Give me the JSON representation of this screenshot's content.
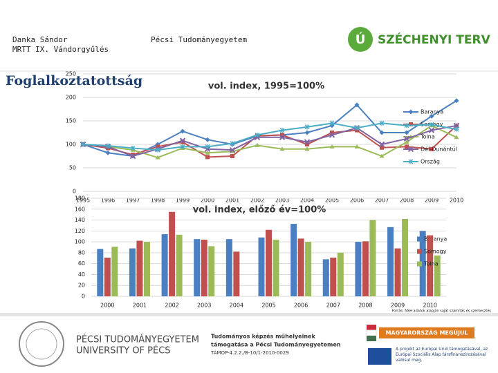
{
  "header": {
    "author": "Danka Sándor",
    "event": "MRTT IX. Vándorgyűlés",
    "university": "Pécsi Tudományegyetem",
    "logo": "SZÉCHENYI TERV",
    "logo_letter": "Ú",
    "heading": "Foglalkoztatottság"
  },
  "footer": {
    "source": "Forrás: NSH adatok alapján saját számítás és szerkesztés",
    "uni_hu": "PÉCSI TUDOMÁNYEGYETEM",
    "uni_en": "UNIVERSITY OF PÉCS",
    "project_1": "Tudományos képzés műhelyeinek",
    "project_2": "támogatása a Pécsi Tudományegyetemen",
    "project_code": "TÁMOP-4.2.2./B-10/1-2010-0029",
    "banner": "MAGYARORSZÁG MEGÚJUL",
    "eu_note": "A projekt az Európai Unió támogatásával, az Európai Szociális Alap társfinanszírozásával valósul meg."
  },
  "chart_data": [
    {
      "type": "line",
      "title": "vol. index, 1995=100%",
      "x": [
        1995,
        1996,
        1997,
        1998,
        1999,
        2000,
        2001,
        2002,
        2003,
        2004,
        2005,
        2006,
        2007,
        2008,
        2009,
        2010
      ],
      "xlim": [
        1995,
        2010
      ],
      "ylim": [
        0,
        250
      ],
      "yticks": [
        0,
        50,
        100,
        150,
        200,
        250
      ],
      "grid": true,
      "series": [
        {
          "name": "Baranya",
          "color": "#4a7fc1",
          "marker": "diamond",
          "values": [
            100,
            82,
            75,
            100,
            128,
            110,
            100,
            118,
            120,
            125,
            140,
            184,
            125,
            125,
            160,
            193
          ]
        },
        {
          "name": "Somogy",
          "color": "#c0504d",
          "marker": "square",
          "values": [
            100,
            92,
            78,
            95,
            105,
            73,
            75,
            118,
            120,
            100,
            125,
            130,
            93,
            95,
            90,
            140
          ]
        },
        {
          "name": "Tolna",
          "color": "#9bbb59",
          "marker": "triangle",
          "values": [
            100,
            95,
            88,
            72,
            92,
            82,
            85,
            98,
            90,
            90,
            95,
            95,
            75,
            105,
            140,
            115
          ]
        },
        {
          "name": "Dél-Dunántúl",
          "color": "#8064a2",
          "marker": "x",
          "values": [
            100,
            95,
            75,
            90,
            108,
            90,
            88,
            115,
            115,
            105,
            120,
            135,
            100,
            112,
            130,
            140
          ]
        },
        {
          "name": "Ország",
          "color": "#4bacc6",
          "marker": "star",
          "values": [
            100,
            97,
            92,
            88,
            95,
            95,
            102,
            120,
            130,
            137,
            145,
            135,
            145,
            140,
            142,
            132
          ]
        }
      ]
    },
    {
      "type": "bar",
      "title": "vol. index, előző év=100%",
      "categories": [
        "2000",
        "2001",
        "2002",
        "2003",
        "2004",
        "2005",
        "2006",
        "2007",
        "2008",
        "2009",
        "2010"
      ],
      "ylim": [
        0,
        180
      ],
      "yticks": [
        0,
        20,
        40,
        60,
        80,
        100,
        120,
        140,
        160,
        180
      ],
      "grid": true,
      "series": [
        {
          "name": "Baranya",
          "color": "#4a7fc1",
          "values": [
            87,
            88,
            114,
            105,
            105,
            108,
            133,
            68,
            100,
            127,
            120
          ]
        },
        {
          "name": "Somogy",
          "color": "#c0504d",
          "values": [
            71,
            102,
            155,
            104,
            82,
            122,
            106,
            71,
            101,
            88,
            112
          ]
        },
        {
          "name": "Tolna",
          "color": "#9bbb59",
          "values": [
            91,
            100,
            113,
            92,
            null,
            104,
            100,
            80,
            140,
            142,
            75
          ]
        }
      ]
    }
  ]
}
